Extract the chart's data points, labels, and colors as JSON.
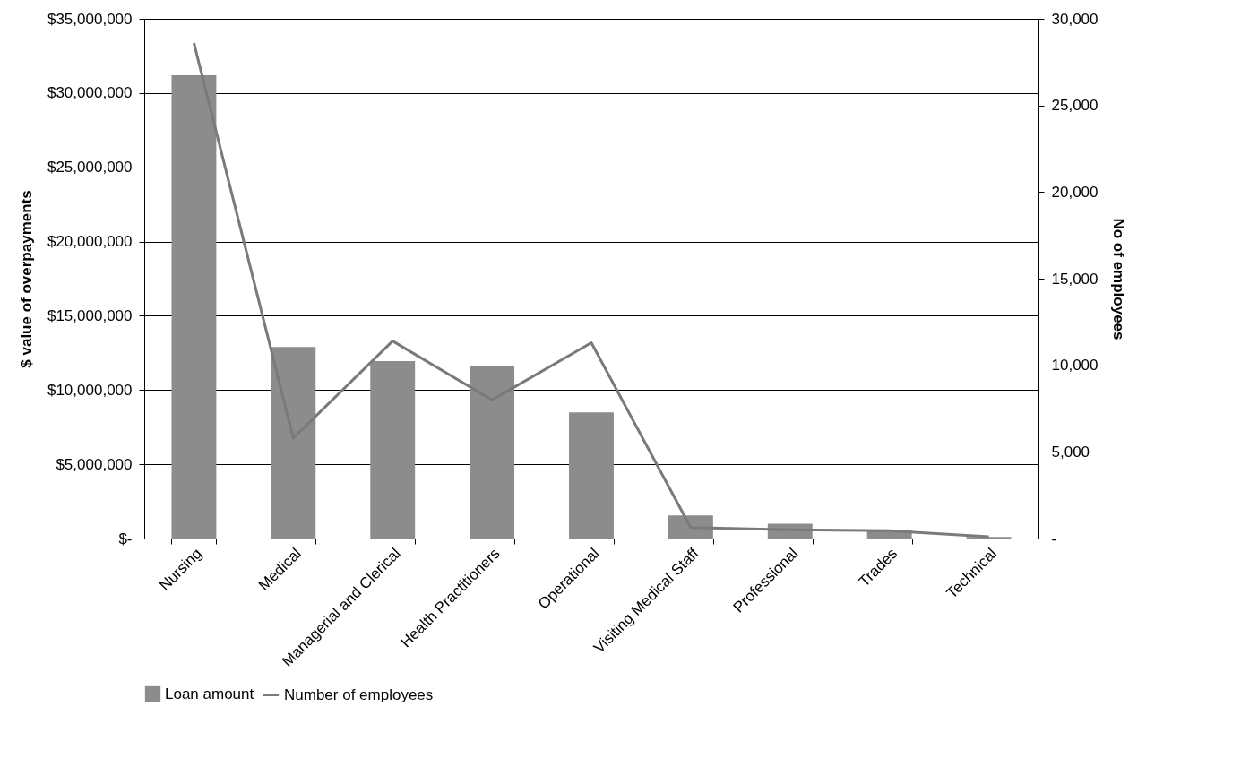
{
  "chart_data": {
    "type": "bar",
    "ylabel": "$ value of overpayments",
    "y2label": "No of employees",
    "categories": [
      "Nursing",
      "Medical",
      "Managerial and Clerical",
      "Health Practitioners",
      "Operational",
      "Visiting Medical Staff",
      "Professional",
      "Trades",
      "Technical"
    ],
    "series": [
      {
        "name": "Loan amount",
        "color": "#8c8c8c",
        "values": [
          31200000,
          12900000,
          11950000,
          11600000,
          8500000,
          1550000,
          1000000,
          600000,
          100000
        ]
      },
      {
        "name": "Number of employees",
        "type": "line",
        "axis": "y2",
        "color": "#7a7a7a",
        "values": [
          28600,
          5800,
          11400,
          8000,
          11300,
          630,
          500,
          450,
          100
        ]
      }
    ],
    "ylim": [
      0,
      35000000
    ],
    "yticks": [
      {
        "value": 0,
        "label": "$-"
      },
      {
        "value": 5000000,
        "label": "$5,000,000"
      },
      {
        "value": 10000000,
        "label": "$10,000,000"
      },
      {
        "value": 15000000,
        "label": "$15,000,000"
      },
      {
        "value": 20000000,
        "label": "$20,000,000"
      },
      {
        "value": 25000000,
        "label": "$25,000,000"
      },
      {
        "value": 30000000,
        "label": "$30,000,000"
      },
      {
        "value": 35000000,
        "label": "$35,000,000"
      }
    ],
    "y2lim": [
      0,
      30000
    ],
    "y2ticks": [
      {
        "value": 0,
        "label": "-"
      },
      {
        "value": 5000,
        "label": "5,000"
      },
      {
        "value": 10000,
        "label": "10,000"
      },
      {
        "value": 15000,
        "label": "15,000"
      },
      {
        "value": 20000,
        "label": "20,000"
      },
      {
        "value": 25000,
        "label": "25,000"
      },
      {
        "value": 30000,
        "label": "30,000"
      }
    ],
    "grid": "y",
    "legend": "bottom",
    "marker": "none",
    "line_style": "solid"
  }
}
